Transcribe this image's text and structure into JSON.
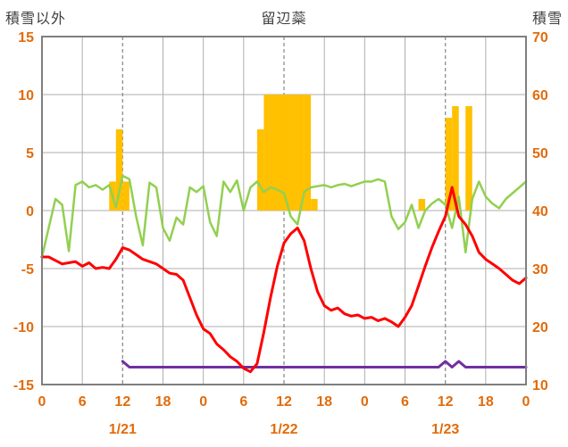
{
  "chart_data": {
    "type": "line+bar",
    "title": "留辺蘂",
    "left_axis_label": "積雪以外",
    "right_axis_label": "積雪",
    "x_hours_total": 72,
    "x_tick_step": 6,
    "x_tick_labels": [
      "0",
      "6",
      "12",
      "18",
      "0",
      "6",
      "12",
      "18",
      "0",
      "6",
      "12",
      "18",
      "0"
    ],
    "date_labels": [
      {
        "t": 12,
        "label": "1/21"
      },
      {
        "t": 36,
        "label": "1/22"
      },
      {
        "t": 60,
        "label": "1/23"
      }
    ],
    "left_axis": {
      "min": -15,
      "max": 15,
      "ticks": [
        15,
        10,
        5,
        0,
        -5,
        -10,
        -15
      ]
    },
    "right_axis": {
      "min": 10,
      "max": 70,
      "ticks": [
        70,
        60,
        50,
        40,
        30,
        20,
        10
      ]
    },
    "dashed_gridlines_t": [
      12,
      36,
      60
    ],
    "tick_label_color": "#E26B0A",
    "series": {
      "bars": {
        "name": "precipitation-bars",
        "axis": "left",
        "color": "#FFC000",
        "values": [
          0,
          0,
          0,
          0,
          0,
          0,
          0,
          0,
          0,
          0,
          2.5,
          7,
          2.5,
          0,
          0,
          0,
          0,
          0,
          0,
          0,
          0,
          0,
          0,
          0,
          0,
          0,
          0,
          0,
          0,
          0,
          0,
          0,
          7,
          10,
          10,
          10,
          10,
          10,
          10,
          10,
          1,
          0,
          0,
          0,
          0,
          0,
          0,
          0,
          0,
          0,
          0,
          0,
          0,
          0,
          0,
          0,
          1,
          0,
          0,
          0,
          8,
          9,
          0,
          9,
          0,
          0,
          0,
          0,
          0,
          0,
          0,
          0,
          0
        ]
      },
      "temperature": {
        "name": "temperature-line",
        "axis": "left",
        "color": "#FF0000",
        "width": 3,
        "values": [
          -4.0,
          -4.0,
          -4.3,
          -4.6,
          -4.5,
          -4.4,
          -4.8,
          -4.5,
          -5.0,
          -4.9,
          -5.0,
          -4.2,
          -3.2,
          -3.4,
          -3.8,
          -4.2,
          -4.4,
          -4.6,
          -5.0,
          -5.4,
          -5.5,
          -6.0,
          -7.5,
          -9.0,
          -10.2,
          -10.6,
          -11.5,
          -12.0,
          -12.6,
          -13.0,
          -13.6,
          -13.9,
          -13.2,
          -10.5,
          -7.5,
          -4.8,
          -2.8,
          -2.0,
          -1.5,
          -2.6,
          -5.0,
          -7.0,
          -8.2,
          -8.6,
          -8.4,
          -8.9,
          -9.1,
          -9.0,
          -9.3,
          -9.2,
          -9.5,
          -9.3,
          -9.6,
          -10.0,
          -9.2,
          -8.2,
          -6.5,
          -4.8,
          -3.2,
          -1.8,
          -0.5,
          2.0,
          -0.5,
          -1.2,
          -2.2,
          -3.6,
          -4.2,
          -4.6,
          -5.0,
          -5.5,
          -6.0,
          -6.3,
          -5.8
        ]
      },
      "green": {
        "name": "green-line",
        "axis": "left",
        "color": "#92D050",
        "width": 2.5,
        "values": [
          -4.0,
          -1.5,
          1.0,
          0.5,
          -3.5,
          2.2,
          2.5,
          2.0,
          2.2,
          1.8,
          2.2,
          0.3,
          3.0,
          2.7,
          -0.5,
          -3.0,
          2.4,
          2.0,
          -1.5,
          -2.6,
          -0.6,
          -1.2,
          2.0,
          1.6,
          2.1,
          -1.0,
          -2.2,
          2.5,
          1.6,
          2.6,
          0.0,
          2.0,
          2.5,
          1.6,
          2.0,
          1.8,
          1.5,
          -0.5,
          -1.2,
          1.6,
          2.0,
          2.1,
          2.2,
          2.0,
          2.2,
          2.3,
          2.1,
          2.3,
          2.5,
          2.5,
          2.7,
          2.5,
          -0.5,
          -1.6,
          -1.0,
          0.5,
          -1.5,
          0.0,
          0.6,
          1.0,
          0.5,
          -1.5,
          1.2,
          -3.6,
          1.0,
          2.5,
          1.2,
          0.6,
          0.2,
          1.0,
          1.5,
          2.0,
          2.5
        ]
      },
      "snow_depth": {
        "name": "snow-depth-line",
        "axis": "right",
        "color": "#7030A0",
        "width": 3,
        "values": [
          null,
          null,
          null,
          null,
          null,
          null,
          null,
          null,
          null,
          null,
          null,
          null,
          14,
          13,
          13,
          13,
          13,
          13,
          13,
          13,
          13,
          13,
          13,
          13,
          13,
          13,
          13,
          13,
          13,
          13,
          13,
          13,
          13,
          13,
          13,
          13,
          13,
          13,
          13,
          13,
          13,
          13,
          13,
          13,
          13,
          13,
          13,
          13,
          13,
          13,
          13,
          13,
          13,
          13,
          13,
          13,
          13,
          13,
          13,
          13,
          14,
          13,
          14,
          13,
          13,
          13,
          13,
          13,
          13,
          13,
          13,
          13,
          13
        ]
      }
    }
  }
}
